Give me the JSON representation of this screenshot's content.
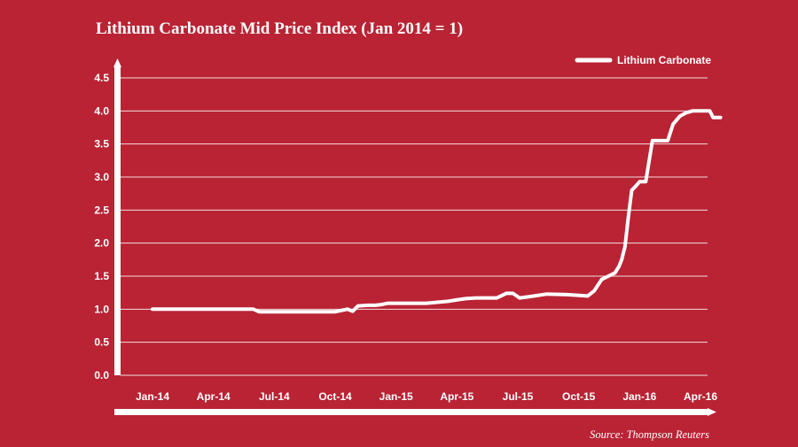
{
  "title": "Lithium Carbonate Mid Price Index (Jan 2014 = 1)",
  "source": "Source: Thompson Reuters",
  "colors": {
    "background": "#b92334",
    "line": "#ffffff",
    "grid": "#ffffff",
    "text": "#ffffff"
  },
  "chart_data": {
    "type": "line",
    "title": "Lithium Carbonate Mid Price Index (Jan 2014 = 1)",
    "xlabel": "",
    "ylabel": "",
    "ylim": [
      0,
      4.5
    ],
    "yticks": [
      "0.0",
      "0.5",
      "1.0",
      "1.5",
      "2.0",
      "2.5",
      "3.0",
      "3.5",
      "4.0",
      "4.5"
    ],
    "xticks": [
      "Jan-14",
      "Apr-14",
      "Jul-14",
      "Oct-14",
      "Jan-15",
      "Apr-15",
      "Jul-15",
      "Oct-15",
      "Jan-16",
      "Apr-16"
    ],
    "xrange": [
      "2014-01",
      "2016-04"
    ],
    "grid": true,
    "legend": "top-right",
    "series": [
      {
        "name": "Lithium Carbonate",
        "x": [
          "2014-01-01",
          "2014-02-15",
          "2014-04-01",
          "2014-05-15",
          "2014-06-01",
          "2014-06-10",
          "2014-07-15",
          "2014-09-01",
          "2014-10-01",
          "2014-10-20",
          "2014-10-28",
          "2014-11-05",
          "2014-11-20",
          "2014-12-01",
          "2014-12-10",
          "2014-12-20",
          "2015-01-10",
          "2015-02-15",
          "2015-03-20",
          "2015-04-01",
          "2015-04-15",
          "2015-05-01",
          "2015-05-20",
          "2015-06-01",
          "2015-06-15",
          "2015-06-25",
          "2015-07-05",
          "2015-07-20",
          "2015-08-15",
          "2015-09-15",
          "2015-10-15",
          "2015-10-25",
          "2015-11-05",
          "2015-11-15",
          "2015-11-25",
          "2015-12-01",
          "2015-12-05",
          "2015-12-10",
          "2015-12-15",
          "2015-12-20",
          "2015-12-25",
          "2016-01-01",
          "2016-01-05",
          "2016-01-10",
          "2016-01-20",
          "2016-02-01",
          "2016-02-12",
          "2016-02-20",
          "2016-03-01",
          "2016-03-10",
          "2016-03-20",
          "2016-04-01",
          "2016-04-15",
          "2016-04-20",
          "2016-05-01"
        ],
        "values": [
          1.0,
          1.0,
          1.0,
          1.0,
          1.0,
          0.96,
          0.96,
          0.96,
          0.96,
          1.0,
          0.97,
          1.05,
          1.06,
          1.06,
          1.07,
          1.09,
          1.09,
          1.09,
          1.12,
          1.14,
          1.16,
          1.17,
          1.17,
          1.17,
          1.24,
          1.24,
          1.17,
          1.19,
          1.23,
          1.22,
          1.2,
          1.28,
          1.45,
          1.5,
          1.55,
          1.65,
          1.75,
          1.95,
          2.4,
          2.8,
          2.85,
          2.93,
          2.93,
          2.93,
          3.55,
          3.55,
          3.55,
          3.8,
          3.92,
          3.97,
          4.0,
          4.0,
          4.0,
          3.9,
          3.9
        ]
      }
    ]
  }
}
